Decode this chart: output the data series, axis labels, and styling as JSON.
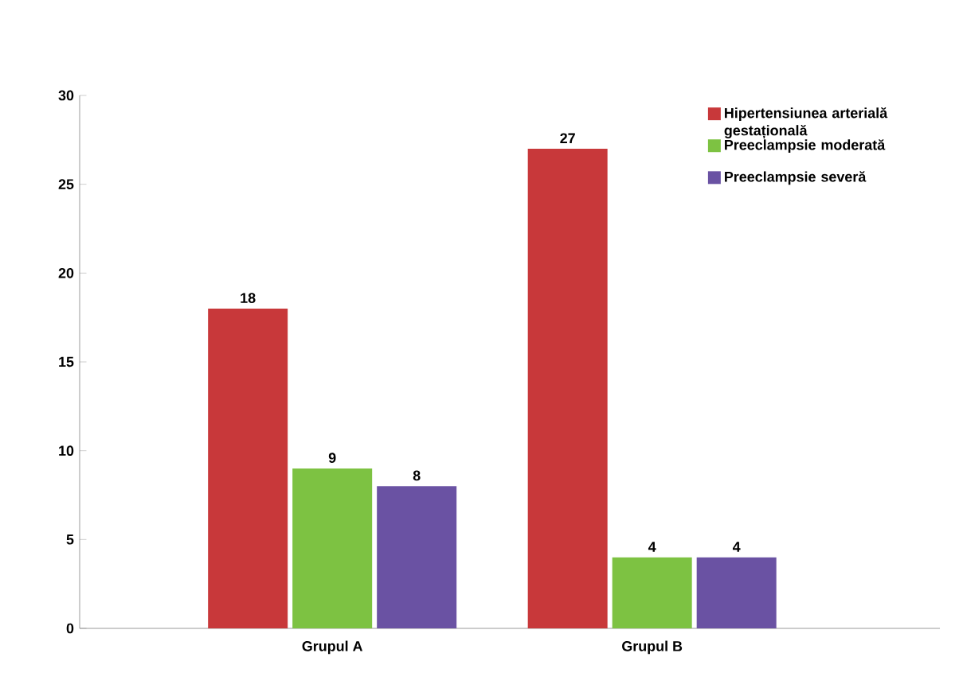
{
  "chart_data": {
    "type": "bar",
    "categories": [
      "Grupul A",
      "Grupul B"
    ],
    "series": [
      {
        "name": "Hipertensiunea arterială gestațională",
        "color": "#c8383a",
        "values": [
          18,
          27
        ]
      },
      {
        "name": "Preeclampsie moderată",
        "color": "#7dc242",
        "values": [
          9,
          4
        ]
      },
      {
        "name": "Preeclampsie severă",
        "color": "#6a52a3",
        "values": [
          8,
          4
        ]
      }
    ],
    "ylim": [
      0,
      30
    ],
    "yticks": [
      0,
      5,
      10,
      15,
      20,
      25,
      30
    ],
    "data_labels": true,
    "legend": "top right",
    "grid": false
  }
}
